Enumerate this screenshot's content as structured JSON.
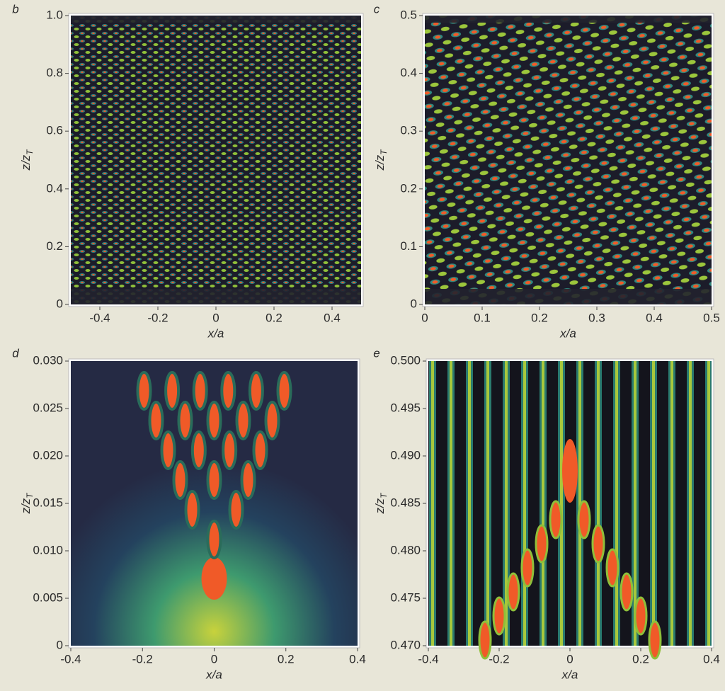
{
  "chart_data": [
    {
      "type": "heatmap",
      "label": "b",
      "xlabel": "x/a",
      "ylabel": "z/z",
      "ylabel_subscript": "T",
      "xlim": [
        -0.5,
        0.5
      ],
      "ylim": [
        0,
        1.0
      ],
      "xticks": [
        -0.4,
        -0.2,
        0,
        0.2,
        0.4
      ],
      "yticks": [
        0,
        0.2,
        0.4,
        0.6,
        0.8,
        {
          "value": 1,
          "label": "1.0"
        }
      ]
    },
    {
      "type": "heatmap",
      "label": "c",
      "xlabel": "x/a",
      "ylabel": "z/z",
      "ylabel_subscript": "T",
      "xlim": [
        0,
        0.5
      ],
      "ylim": [
        0,
        0.5
      ],
      "xticks": [
        0,
        0.1,
        0.2,
        0.3,
        0.4,
        0.5
      ],
      "yticks": [
        0,
        0.1,
        0.2,
        0.3,
        0.4,
        0.5
      ]
    },
    {
      "type": "heatmap",
      "label": "d",
      "xlabel": "x/a",
      "ylabel": "z/z",
      "ylabel_subscript": "T",
      "xlim": [
        -0.4,
        0.4
      ],
      "ylim": [
        0,
        0.03
      ],
      "xticks": [
        -0.4,
        -0.2,
        0,
        0.2,
        0.4
      ],
      "yticks": [
        0,
        {
          "value": 0.005,
          "label": "0.005"
        },
        {
          "value": 0.01,
          "label": "0.010"
        },
        {
          "value": 0.015,
          "label": "0.015"
        },
        {
          "value": 0.02,
          "label": "0.020"
        },
        {
          "value": 0.025,
          "label": "0.025"
        },
        {
          "value": 0.03,
          "label": "0.030"
        }
      ]
    },
    {
      "type": "heatmap",
      "label": "e",
      "xlabel": "x/a",
      "ylabel": "z/z",
      "ylabel_subscript": "T",
      "xlim": [
        -0.4,
        0.4
      ],
      "ylim": [
        0.47,
        0.5
      ],
      "xticks": [
        -0.4,
        -0.2,
        0,
        0.2,
        0.4
      ],
      "yticks": [
        {
          "value": 0.47,
          "label": "0.470"
        },
        0.475,
        {
          "value": 0.48,
          "label": "0.480"
        },
        0.485,
        {
          "value": 0.49,
          "label": "0.490"
        },
        0.495,
        {
          "value": 0.5,
          "label": "0.500"
        }
      ]
    }
  ]
}
